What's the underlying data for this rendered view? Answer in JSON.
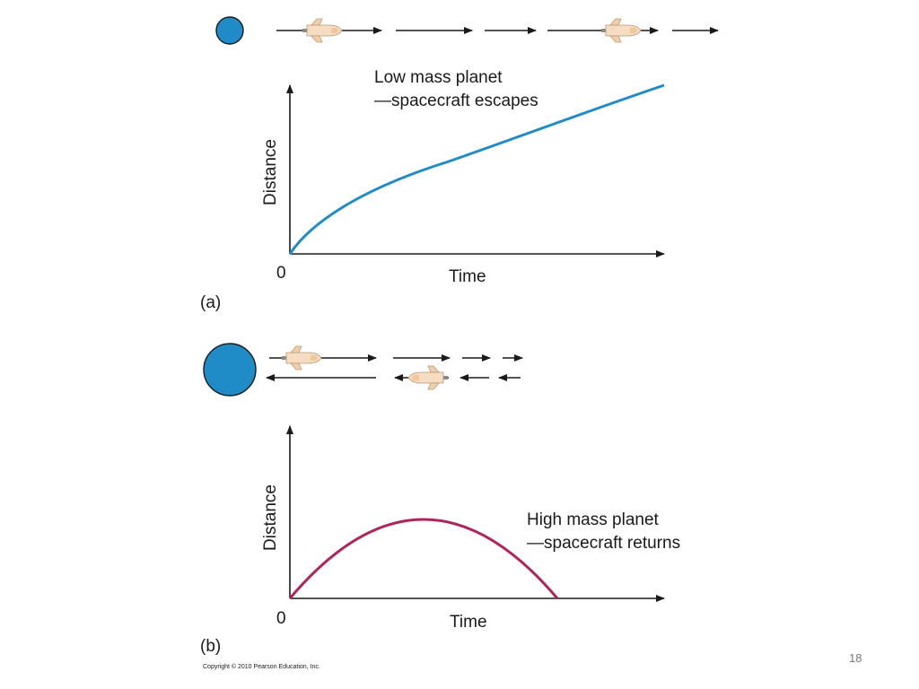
{
  "panel_a": {
    "caption_line1": "Low mass planet",
    "caption_line2": "—spacecraft escapes",
    "y_axis_label": "Distance",
    "x_axis_label": "Time",
    "origin_label": "0",
    "panel_label": "(a)",
    "curve_color": "#1f8cc8",
    "planet_color": "#1f8cc8"
  },
  "panel_b": {
    "caption_line1": "High mass planet",
    "caption_line2": "—spacecraft returns",
    "y_axis_label": "Distance",
    "x_axis_label": "Time",
    "origin_label": "0",
    "panel_label": "(b)",
    "curve_color": "#b0245d",
    "planet_color": "#1f8cc8"
  },
  "footer": {
    "copyright": "Copyright © 2010 Pearson Education, Inc.",
    "page_number": "18"
  }
}
